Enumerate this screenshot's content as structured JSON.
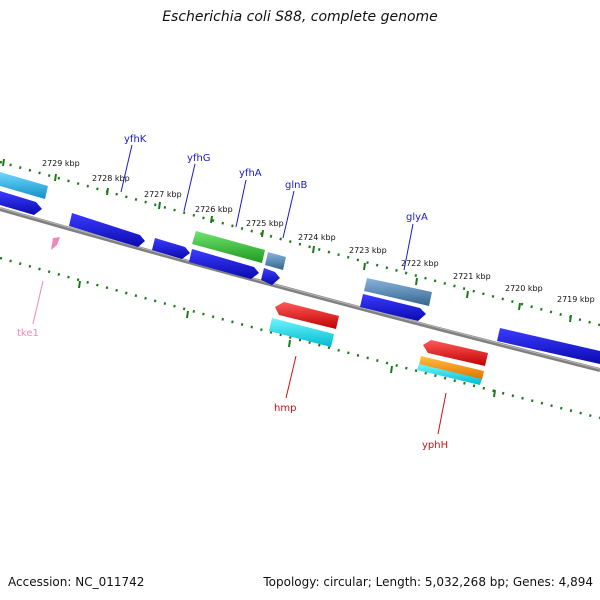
{
  "title": "Escherichia coli S88, complete genome",
  "footer": {
    "accession": "Accession: NC_011742",
    "topology": "Topology: circular; Length: 5,032,268 bp; Genes: 4,894"
  },
  "ticks": [
    "2729 kbp",
    "2728 kbp",
    "2727 kbp",
    "2726 kbp",
    "2725 kbp",
    "2724 kbp",
    "2723 kbp",
    "2722 kbp",
    "2721 kbp",
    "2720 kbp",
    "2719 kbp"
  ],
  "genes": {
    "yfhK": "yfhK",
    "yfhG": "yfhG",
    "yfhA": "yfhA",
    "glnB": "glnB",
    "glyA": "glyA",
    "hmp": "hmp",
    "yphH": "yphH",
    "tke1": "tke1"
  },
  "colors": {
    "backbone": "#808080",
    "tick_marks": "#1a7a1a",
    "cds_blue": "#1a1adf",
    "cyan": "#19d7e8",
    "sky": "#2ab8e6",
    "green": "#2fb52f",
    "steel": "#4f83b3",
    "red": "#e01010",
    "orange": "#f08c00",
    "pink": "#ee88bb",
    "label_blue": "#1a1acc",
    "label_red": "#cc1111"
  }
}
